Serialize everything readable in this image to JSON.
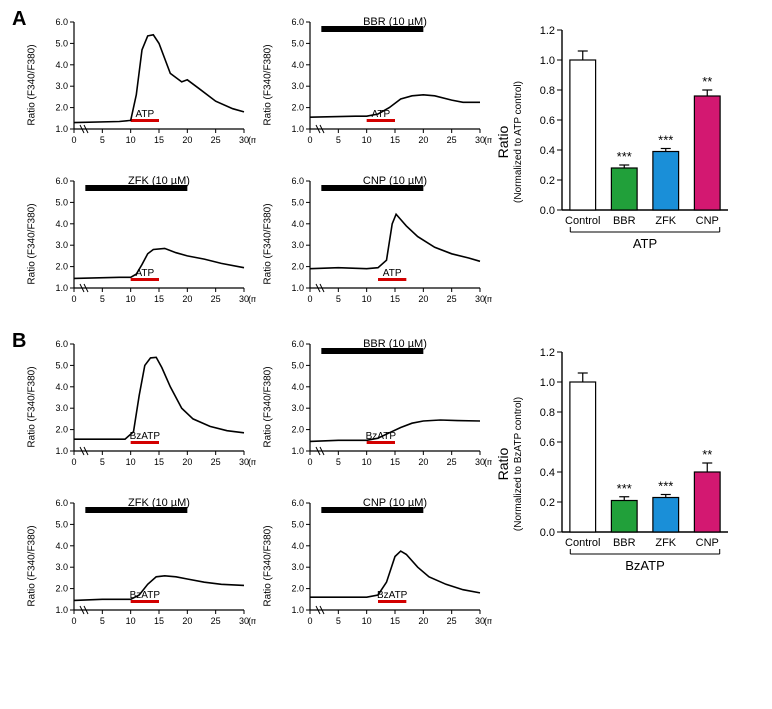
{
  "colors": {
    "axis": "#000000",
    "trace_line": "#000000",
    "drug_bar": "#000000",
    "stim_bar": "#d30000",
    "grid": "#ffffff",
    "bar_control_fill": "#ffffff",
    "bar_bbr": "#21a03a",
    "bar_zfk": "#1a8fd8",
    "bar_cnp": "#d31871",
    "bar_stroke": "#000000"
  },
  "axes": {
    "y": {
      "lim": [
        1.0,
        6.0
      ],
      "ticks": [
        1.0,
        2.0,
        3.0,
        4.0,
        5.0,
        6.0
      ],
      "label": "Ratio (F340/F380)",
      "fontsize": 10
    },
    "x": {
      "lim": [
        0,
        30
      ],
      "ticks": [
        0,
        5,
        10,
        15,
        20,
        25,
        30
      ],
      "label": "(min)",
      "fontsize": 10
    },
    "break": true
  },
  "panels": {
    "A": {
      "label": "A",
      "stimulus": "ATP",
      "traces": [
        {
          "id": "A-control",
          "drug": null,
          "drug_text": null,
          "stim_bar": [
            10,
            15
          ],
          "drug_bar": null,
          "points": [
            [
              0,
              1.3
            ],
            [
              8,
              1.35
            ],
            [
              10,
              1.4
            ],
            [
              11,
              2.6
            ],
            [
              12,
              4.7
            ],
            [
              13,
              5.35
            ],
            [
              14,
              5.4
            ],
            [
              15,
              5.0
            ],
            [
              17,
              3.6
            ],
            [
              19,
              3.2
            ],
            [
              20,
              3.3
            ],
            [
              22,
              2.9
            ],
            [
              25,
              2.3
            ],
            [
              28,
              1.95
            ],
            [
              30,
              1.8
            ]
          ]
        },
        {
          "id": "A-bbr",
          "drug": "BBR",
          "drug_text": "BBR (10 µM)",
          "stim_bar": [
            10,
            15
          ],
          "drug_bar": [
            2,
            20
          ],
          "points": [
            [
              0,
              1.55
            ],
            [
              8,
              1.6
            ],
            [
              10,
              1.6
            ],
            [
              12,
              1.7
            ],
            [
              14,
              2.0
            ],
            [
              16,
              2.4
            ],
            [
              18,
              2.55
            ],
            [
              20,
              2.6
            ],
            [
              22,
              2.55
            ],
            [
              25,
              2.35
            ],
            [
              27,
              2.25
            ],
            [
              30,
              2.25
            ]
          ]
        },
        {
          "id": "A-zfk",
          "drug": "ZFK",
          "drug_text": "ZFK (10 µM)",
          "stim_bar": [
            10,
            15
          ],
          "drug_bar": [
            2,
            20
          ],
          "points": [
            [
              0,
              1.45
            ],
            [
              8,
              1.5
            ],
            [
              10,
              1.5
            ],
            [
              11,
              1.65
            ],
            [
              12,
              2.1
            ],
            [
              13,
              2.6
            ],
            [
              14,
              2.8
            ],
            [
              16,
              2.85
            ],
            [
              18,
              2.65
            ],
            [
              20,
              2.5
            ],
            [
              23,
              2.35
            ],
            [
              26,
              2.15
            ],
            [
              30,
              1.95
            ]
          ]
        },
        {
          "id": "A-cnp",
          "drug": "CNP",
          "drug_text": "CNP (10 µM)",
          "stim_bar": [
            12,
            17
          ],
          "drug_bar": [
            2,
            20
          ],
          "points": [
            [
              0,
              1.9
            ],
            [
              5,
              1.95
            ],
            [
              10,
              1.9
            ],
            [
              12,
              1.95
            ],
            [
              13.5,
              2.3
            ],
            [
              14.5,
              4.0
            ],
            [
              15.2,
              4.45
            ],
            [
              16,
              4.2
            ],
            [
              17,
              3.9
            ],
            [
              19,
              3.4
            ],
            [
              22,
              2.9
            ],
            [
              25,
              2.6
            ],
            [
              28,
              2.4
            ],
            [
              30,
              2.25
            ]
          ]
        }
      ],
      "bar": {
        "y": {
          "lim": [
            0,
            1.2
          ],
          "ticks": [
            0,
            0.2,
            0.4,
            0.6,
            0.8,
            1.0,
            1.2
          ]
        },
        "main_label": "Ratio",
        "sub_label": "(Normalized to ATP control)",
        "bottom_label": "ATP",
        "bars": [
          {
            "name": "Control",
            "value": 1.0,
            "err": 0.06,
            "fill_key": "bar_control_fill",
            "sig": ""
          },
          {
            "name": "BBR",
            "value": 0.28,
            "err": 0.02,
            "fill_key": "bar_bbr",
            "sig": "***"
          },
          {
            "name": "ZFK",
            "value": 0.39,
            "err": 0.02,
            "fill_key": "bar_zfk",
            "sig": "***"
          },
          {
            "name": "CNP",
            "value": 0.76,
            "err": 0.04,
            "fill_key": "bar_cnp",
            "sig": "**"
          }
        ]
      }
    },
    "B": {
      "label": "B",
      "stimulus": "BzATP",
      "traces": [
        {
          "id": "B-control",
          "drug": null,
          "drug_text": null,
          "stim_bar": [
            10,
            15
          ],
          "drug_bar": null,
          "points": [
            [
              0,
              1.55
            ],
            [
              5,
              1.55
            ],
            [
              9,
              1.55
            ],
            [
              10.5,
              1.9
            ],
            [
              11.5,
              3.6
            ],
            [
              12.5,
              5.0
            ],
            [
              13.5,
              5.35
            ],
            [
              14.5,
              5.38
            ],
            [
              15.5,
              4.9
            ],
            [
              17,
              4.0
            ],
            [
              19,
              3.0
            ],
            [
              21,
              2.5
            ],
            [
              24,
              2.15
            ],
            [
              27,
              1.95
            ],
            [
              30,
              1.85
            ]
          ]
        },
        {
          "id": "B-bbr",
          "drug": "BBR",
          "drug_text": "BBR (10 µM)",
          "stim_bar": [
            10,
            15
          ],
          "drug_bar": [
            2,
            20
          ],
          "points": [
            [
              0,
              1.45
            ],
            [
              5,
              1.5
            ],
            [
              10,
              1.5
            ],
            [
              12,
              1.6
            ],
            [
              14,
              1.85
            ],
            [
              16,
              2.1
            ],
            [
              18,
              2.3
            ],
            [
              20,
              2.4
            ],
            [
              23,
              2.45
            ],
            [
              26,
              2.42
            ],
            [
              30,
              2.4
            ]
          ]
        },
        {
          "id": "B-zfk",
          "drug": "ZFK",
          "drug_text": "ZFK (10 µM)",
          "stim_bar": [
            10,
            15
          ],
          "drug_bar": [
            2,
            20
          ],
          "points": [
            [
              0,
              1.45
            ],
            [
              5,
              1.5
            ],
            [
              10,
              1.5
            ],
            [
              11.5,
              1.7
            ],
            [
              13,
              2.2
            ],
            [
              14.5,
              2.55
            ],
            [
              16,
              2.6
            ],
            [
              18,
              2.55
            ],
            [
              20,
              2.45
            ],
            [
              23,
              2.3
            ],
            [
              26,
              2.2
            ],
            [
              30,
              2.15
            ]
          ]
        },
        {
          "id": "B-cnp",
          "drug": "CNP",
          "drug_text": "CNP (10 µM)",
          "stim_bar": [
            12,
            17
          ],
          "drug_bar": [
            2,
            20
          ],
          "points": [
            [
              0,
              1.6
            ],
            [
              5,
              1.6
            ],
            [
              10,
              1.6
            ],
            [
              12,
              1.7
            ],
            [
              13.5,
              2.3
            ],
            [
              15,
              3.5
            ],
            [
              16,
              3.75
            ],
            [
              17,
              3.6
            ],
            [
              19,
              3.0
            ],
            [
              21,
              2.55
            ],
            [
              24,
              2.2
            ],
            [
              27,
              1.95
            ],
            [
              30,
              1.8
            ]
          ]
        }
      ],
      "bar": {
        "y": {
          "lim": [
            0,
            1.2
          ],
          "ticks": [
            0,
            0.2,
            0.4,
            0.6,
            0.8,
            1.0,
            1.2
          ]
        },
        "main_label": "Ratio",
        "sub_label": "(Normalized to BzATP control)",
        "bottom_label": "BzATP",
        "bars": [
          {
            "name": "Control",
            "value": 1.0,
            "err": 0.06,
            "fill_key": "bar_control_fill",
            "sig": ""
          },
          {
            "name": "BBR",
            "value": 0.21,
            "err": 0.025,
            "fill_key": "bar_bbr",
            "sig": "***"
          },
          {
            "name": "ZFK",
            "value": 0.23,
            "err": 0.02,
            "fill_key": "bar_zfk",
            "sig": "***"
          },
          {
            "name": "CNP",
            "value": 0.4,
            "err": 0.06,
            "fill_key": "bar_cnp",
            "sig": "**"
          }
        ]
      }
    }
  }
}
